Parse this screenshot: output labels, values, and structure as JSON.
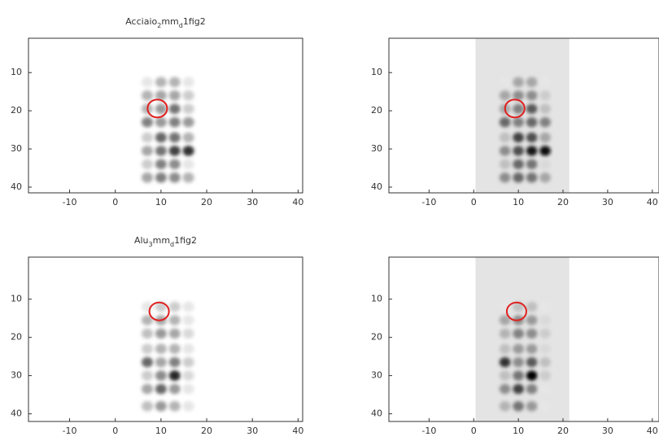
{
  "chart_data": [
    {
      "type": "heatmap",
      "title": [
        "Acciaio",
        "2",
        "mm",
        "d",
        "1fig2"
      ],
      "x": [
        7,
        10,
        13,
        16
      ],
      "y": [
        12.5,
        16,
        19.5,
        23,
        27,
        30.5,
        34,
        37.5
      ],
      "values": [
        [
          0.1,
          0.3,
          0.3,
          0.1
        ],
        [
          0.3,
          0.35,
          0.35,
          0.2
        ],
        [
          0.3,
          0.4,
          0.55,
          0.2
        ],
        [
          0.5,
          0.4,
          0.5,
          0.4
        ],
        [
          0.2,
          0.6,
          0.55,
          0.3
        ],
        [
          0.35,
          0.55,
          0.75,
          0.8
        ],
        [
          0.2,
          0.5,
          0.45,
          0.1
        ],
        [
          0.35,
          0.5,
          0.45,
          0.3
        ]
      ],
      "xlim": [
        -19,
        41
      ],
      "ylim": [
        1,
        41.5
      ],
      "y_reversed": true,
      "xticks": [
        -10,
        0,
        10,
        20,
        30,
        40
      ],
      "yticks": [
        10,
        20,
        30,
        40
      ],
      "circle": {
        "x": 9.2,
        "y": 19.4,
        "color": "#e02020"
      }
    },
    {
      "type": "heatmap",
      "x": [
        7,
        10,
        13,
        16
      ],
      "y": [
        12.5,
        16,
        19.5,
        23,
        27,
        30.5,
        34,
        37.5
      ],
      "values": [
        [
          0.1,
          0.35,
          0.35,
          0.1
        ],
        [
          0.35,
          0.45,
          0.45,
          0.2
        ],
        [
          0.35,
          0.5,
          0.65,
          0.25
        ],
        [
          0.6,
          0.5,
          0.6,
          0.5
        ],
        [
          0.25,
          0.75,
          0.7,
          0.35
        ],
        [
          0.45,
          0.7,
          0.9,
          0.95
        ],
        [
          0.25,
          0.6,
          0.55,
          0.15
        ],
        [
          0.45,
          0.6,
          0.55,
          0.35
        ]
      ],
      "xlim": [
        -19,
        41.5
      ],
      "ylim": [
        1,
        41.5
      ],
      "y_reversed": true,
      "xticks": [
        -10,
        0,
        10,
        20,
        30,
        40
      ],
      "yticks": [
        10,
        20,
        30,
        40
      ],
      "panel": {
        "xlim": [
          0.4,
          21.4
        ],
        "color": "#e4e4e4"
      },
      "circle": {
        "x": 9.2,
        "y": 19.4,
        "color": "#e02020"
      }
    },
    {
      "type": "heatmap",
      "title": [
        "Alu",
        "3",
        "mm",
        "d",
        "1fig2"
      ],
      "x": [
        7,
        10,
        13,
        16
      ],
      "y": [
        12,
        15.5,
        19,
        23,
        26.5,
        30,
        33.5,
        38
      ],
      "values": [
        [
          0.1,
          0.2,
          0.2,
          0.1
        ],
        [
          0.3,
          0.35,
          0.3,
          0.1
        ],
        [
          0.25,
          0.4,
          0.35,
          0.15
        ],
        [
          0.2,
          0.3,
          0.3,
          0.1
        ],
        [
          0.6,
          0.35,
          0.5,
          0.2
        ],
        [
          0.2,
          0.45,
          0.85,
          0.15
        ],
        [
          0.35,
          0.6,
          0.4,
          0.1
        ],
        [
          0.25,
          0.4,
          0.3,
          0.1
        ]
      ],
      "xlim": [
        -19,
        41
      ],
      "ylim": [
        -1,
        42
      ],
      "y_reversed": true,
      "xticks": [
        -10,
        0,
        10,
        20,
        30,
        40
      ],
      "yticks": [
        10,
        20,
        30,
        40
      ],
      "circle": {
        "x": 9.6,
        "y": 13.2,
        "color": "#e02020"
      }
    },
    {
      "type": "heatmap",
      "x": [
        7,
        10,
        13,
        16
      ],
      "y": [
        12,
        15.5,
        19,
        23,
        26.5,
        30,
        33.5,
        38
      ],
      "values": [
        [
          0.1,
          0.25,
          0.25,
          0.1
        ],
        [
          0.35,
          0.45,
          0.4,
          0.15
        ],
        [
          0.3,
          0.5,
          0.45,
          0.2
        ],
        [
          0.25,
          0.4,
          0.4,
          0.15
        ],
        [
          0.8,
          0.45,
          0.65,
          0.25
        ],
        [
          0.25,
          0.55,
          1.0,
          0.2
        ],
        [
          0.45,
          0.75,
          0.5,
          0.1
        ],
        [
          0.3,
          0.55,
          0.4,
          0.1
        ]
      ],
      "xlim": [
        -19,
        41.5
      ],
      "ylim": [
        -1,
        42
      ],
      "y_reversed": true,
      "xticks": [
        -10,
        0,
        10,
        20,
        30,
        40
      ],
      "yticks": [
        10,
        20,
        30,
        40
      ],
      "panel": {
        "xlim": [
          0.4,
          21.4
        ],
        "color": "#e4e4e4"
      },
      "circle": {
        "x": 9.6,
        "y": 13.2,
        "color": "#e02020"
      }
    }
  ]
}
